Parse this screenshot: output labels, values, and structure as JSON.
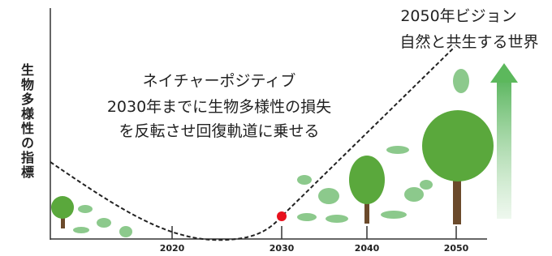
{
  "y_axis_label": "生物多様性の指標",
  "annotation": {
    "lines": [
      "ネイチャーポジティブ",
      "2030年までに生物多様性の損失",
      "を反転させ回復軌道に乗せる"
    ]
  },
  "vision": {
    "lines": [
      "2050年ビジョン",
      "自然と共生する世界"
    ]
  },
  "x_ticks": [
    "2020",
    "2030",
    "2040",
    "2050"
  ]
}
